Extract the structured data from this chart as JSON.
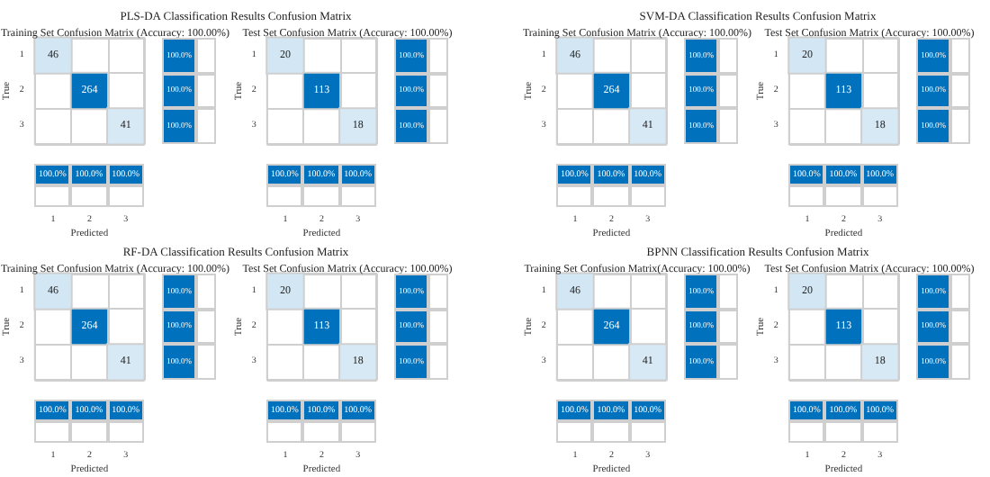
{
  "chart_data": [
    {
      "type": "other",
      "title": "PLS-DA Classification Results Confusion Matrix"
    },
    {
      "type": "heatmap",
      "title": "Training Set Confusion Matrix (Accuracy: 100.00%)",
      "xlabel": "Predicted",
      "ylabel": "True",
      "categories": [
        "1",
        "2",
        "3"
      ],
      "y_categories": [
        "1",
        "2",
        "3"
      ],
      "cells": [
        [
          46,
          null,
          null
        ],
        [
          null,
          264,
          null
        ],
        [
          null,
          null,
          41
        ]
      ],
      "data_labels": true
    },
    {
      "type": "other",
      "annotations": [
        "100.0%",
        "100.0%",
        "100.0%"
      ]
    },
    {
      "type": "other",
      "annotations": [
        "100.0%",
        "100.0%",
        "100.0%"
      ]
    },
    {
      "type": "heatmap",
      "title": "Test Set Confusion Matrix (Accuracy: 100.00%)",
      "xlabel": "Predicted",
      "ylabel": "True",
      "categories": [
        "1",
        "2",
        "3"
      ],
      "y_categories": [
        "1",
        "2",
        "3"
      ],
      "cells": [
        [
          20,
          null,
          null
        ],
        [
          null,
          113,
          null
        ],
        [
          null,
          null,
          18
        ]
      ],
      "data_labels": true
    },
    {
      "type": "other",
      "annotations": [
        "100.0%",
        "100.0%",
        "100.0%"
      ]
    },
    {
      "type": "other",
      "annotations": [
        "100.0%",
        "100.0%",
        "100.0%"
      ]
    },
    {
      "type": "other",
      "title": "SVM-DA Classification Results Confusion Matrix"
    },
    {
      "type": "heatmap",
      "title": "Training Set Confusion Matrix (Accuracy: 100.00%)",
      "xlabel": "Predicted",
      "ylabel": "True",
      "categories": [
        "1",
        "2",
        "3"
      ],
      "y_categories": [
        "1",
        "2",
        "3"
      ],
      "cells": [
        [
          46,
          null,
          null
        ],
        [
          null,
          264,
          null
        ],
        [
          null,
          null,
          41
        ]
      ],
      "data_labels": true
    },
    {
      "type": "other",
      "annotations": [
        "100.0%",
        "100.0%",
        "100.0%"
      ]
    },
    {
      "type": "other",
      "annotations": [
        "100.0%",
        "100.0%",
        "100.0%"
      ]
    },
    {
      "type": "heatmap",
      "title": "Test Set Confusion Matrix (Accuracy: 100.00%)",
      "xlabel": "Predicted",
      "ylabel": "True",
      "categories": [
        "1",
        "2",
        "3"
      ],
      "y_categories": [
        "1",
        "2",
        "3"
      ],
      "cells": [
        [
          20,
          null,
          null
        ],
        [
          null,
          113,
          null
        ],
        [
          null,
          null,
          18
        ]
      ],
      "data_labels": true
    },
    {
      "type": "other",
      "annotations": [
        "100.0%",
        "100.0%",
        "100.0%"
      ]
    },
    {
      "type": "other",
      "annotations": [
        "100.0%",
        "100.0%",
        "100.0%"
      ]
    },
    {
      "type": "other",
      "title": "RF-DA Classification Results Confusion Matrix"
    },
    {
      "type": "heatmap",
      "title": "Training Set Confusion Matrix (Accuracy: 100.00%)",
      "xlabel": "Predicted",
      "ylabel": "True",
      "categories": [
        "1",
        "2",
        "3"
      ],
      "y_categories": [
        "1",
        "2",
        "3"
      ],
      "cells": [
        [
          46,
          null,
          null
        ],
        [
          null,
          264,
          null
        ],
        [
          null,
          null,
          41
        ]
      ],
      "data_labels": true
    },
    {
      "type": "other",
      "annotations": [
        "100.0%",
        "100.0%",
        "100.0%"
      ]
    },
    {
      "type": "other",
      "annotations": [
        "100.0%",
        "100.0%",
        "100.0%"
      ]
    },
    {
      "type": "heatmap",
      "title": "Test Set Confusion Matrix (Accuracy: 100.00%)",
      "xlabel": "Predicted",
      "ylabel": "True",
      "categories": [
        "1",
        "2",
        "3"
      ],
      "y_categories": [
        "1",
        "2",
        "3"
      ],
      "cells": [
        [
          20,
          null,
          null
        ],
        [
          null,
          113,
          null
        ],
        [
          null,
          null,
          18
        ]
      ],
      "data_labels": true
    },
    {
      "type": "other",
      "annotations": [
        "100.0%",
        "100.0%",
        "100.0%"
      ]
    },
    {
      "type": "other",
      "annotations": [
        "100.0%",
        "100.0%",
        "100.0%"
      ]
    },
    {
      "type": "other",
      "title": "BPNN Classification Results Confusion Matrix"
    },
    {
      "type": "heatmap",
      "title": "Training Set Confusion Matrix(Accuracy: 100.00%)",
      "xlabel": "Predicted",
      "ylabel": "True",
      "categories": [
        "1",
        "2",
        "3"
      ],
      "y_categories": [
        "1",
        "2",
        "3"
      ],
      "cells": [
        [
          46,
          null,
          null
        ],
        [
          null,
          264,
          null
        ],
        [
          null,
          null,
          41
        ]
      ],
      "data_labels": true
    },
    {
      "type": "other",
      "annotations": [
        "100.0%",
        "100.0%",
        "100.0%"
      ]
    },
    {
      "type": "other",
      "annotations": [
        "100.0%",
        "100.0%",
        "100.0%"
      ]
    },
    {
      "type": "heatmap",
      "title": "Test Set Confusion Matrix (Accuracy: 100.00%)",
      "xlabel": "Predicted",
      "ylabel": "True",
      "categories": [
        "1",
        "2",
        "3"
      ],
      "y_categories": [
        "1",
        "2",
        "3"
      ],
      "cells": [
        [
          20,
          null,
          null
        ],
        [
          null,
          113,
          null
        ],
        [
          null,
          null,
          18
        ]
      ],
      "data_labels": true
    },
    {
      "type": "other",
      "annotations": [
        "100.0%",
        "100.0%",
        "100.0%"
      ]
    },
    {
      "type": "other",
      "annotations": [
        "100.0%",
        "100.0%",
        "100.0%"
      ]
    }
  ]
}
